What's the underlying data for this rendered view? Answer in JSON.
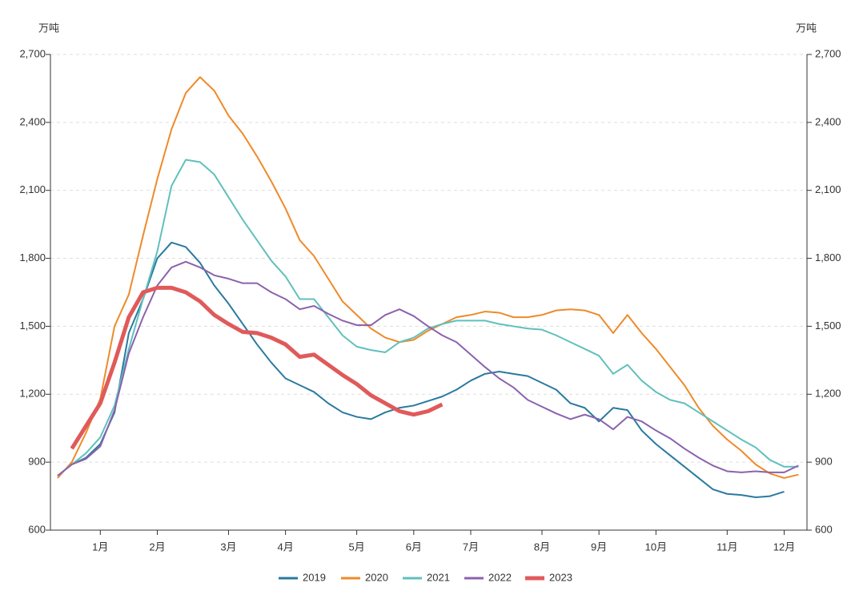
{
  "chart_data": {
    "type": "line",
    "y_unit_left": "万吨",
    "y_unit_right": "万吨",
    "x": [
      1,
      2,
      3,
      4,
      5,
      6,
      7,
      8,
      9,
      10,
      11,
      12,
      13,
      14,
      15,
      16,
      17,
      18,
      19,
      20,
      21,
      22,
      23,
      24,
      25,
      26,
      27,
      28,
      29,
      30,
      31,
      32,
      33,
      34,
      35,
      36,
      37,
      38,
      39,
      40,
      41,
      42,
      43,
      44,
      45,
      46,
      47,
      48,
      49,
      50,
      51,
      52,
      53
    ],
    "xlim": [
      0.5,
      53.6
    ],
    "xticks": [
      {
        "value": 4,
        "label": "1月"
      },
      {
        "value": 8,
        "label": "2月"
      },
      {
        "value": 13,
        "label": "3月"
      },
      {
        "value": 17,
        "label": "4月"
      },
      {
        "value": 22,
        "label": "5月"
      },
      {
        "value": 26,
        "label": "6月"
      },
      {
        "value": 30,
        "label": "7月"
      },
      {
        "value": 35,
        "label": "8月"
      },
      {
        "value": 39,
        "label": "9月"
      },
      {
        "value": 43,
        "label": "10月"
      },
      {
        "value": 48,
        "label": "11月"
      },
      {
        "value": 52,
        "label": "12月"
      }
    ],
    "ylim": [
      600,
      2700
    ],
    "yticks": [
      600,
      900,
      {
        "value": 1200,
        "label": "1,200"
      },
      {
        "value": 1500,
        "label": "1,500"
      },
      {
        "value": 1800,
        "label": "1,800"
      },
      {
        "value": 2100,
        "label": "2,100"
      },
      {
        "value": 2400,
        "label": "2,400"
      },
      {
        "value": 2700,
        "label": "2,700"
      }
    ],
    "y2lim": [
      600,
      2700
    ],
    "y2ticks": [
      600,
      900,
      {
        "value": 1200,
        "label": "1,200"
      },
      {
        "value": 1500,
        "label": "1,500"
      },
      {
        "value": 1800,
        "label": "1,800"
      },
      {
        "value": 2100,
        "label": "2,100"
      },
      {
        "value": 2400,
        "label": "2,400"
      },
      {
        "value": 2700,
        "label": "2,700"
      }
    ],
    "grid": true,
    "legend": "bottom",
    "series": [
      {
        "name": "2019",
        "color": "#2a7aa0",
        "width": 2,
        "values": [
          840,
          890,
          920,
          980,
          1120,
          1470,
          1620,
          1800,
          1870,
          1850,
          1780,
          1680,
          1600,
          1510,
          1420,
          1340,
          1270,
          1240,
          1210,
          1160,
          1120,
          1100,
          1090,
          1120,
          1140,
          1150,
          1170,
          1190,
          1220,
          1260,
          1290,
          1300,
          1290,
          1280,
          1250,
          1220,
          1160,
          1140,
          1080,
          1140,
          1130,
          1040,
          980,
          930,
          880,
          830,
          780,
          760,
          755,
          745,
          750,
          770,
          null
        ]
      },
      {
        "name": "2020",
        "color": "#ef8a2a",
        "width": 2,
        "values": [
          830,
          900,
          1030,
          1180,
          1500,
          1640,
          1900,
          2150,
          2370,
          2530,
          2600,
          2540,
          2430,
          2350,
          2250,
          2140,
          2020,
          1880,
          1810,
          1710,
          1610,
          1550,
          1490,
          1450,
          1430,
          1440,
          1480,
          1510,
          1540,
          1550,
          1565,
          1560,
          1540,
          1540,
          1550,
          1570,
          1575,
          1570,
          1550,
          1470,
          1550,
          1470,
          1400,
          1320,
          1240,
          1140,
          1060,
          1000,
          950,
          890,
          850,
          830,
          845
        ]
      },
      {
        "name": "2021",
        "color": "#60c0bd",
        "width": 2,
        "values": [
          840,
          890,
          940,
          1010,
          1150,
          1400,
          1620,
          1830,
          2120,
          2235,
          2225,
          2170,
          2070,
          1970,
          1880,
          1790,
          1720,
          1620,
          1620,
          1540,
          1460,
          1410,
          1395,
          1385,
          1430,
          1450,
          1490,
          1510,
          1525,
          1525,
          1525,
          1510,
          1500,
          1490,
          1485,
          1460,
          1430,
          1400,
          1370,
          1290,
          1330,
          1260,
          1210,
          1175,
          1160,
          1120,
          1080,
          1040,
          1000,
          965,
          910,
          880,
          880
        ]
      },
      {
        "name": "2022",
        "color": "#8b62ad",
        "width": 2,
        "values": [
          840,
          890,
          915,
          970,
          1130,
          1380,
          1540,
          1680,
          1760,
          1785,
          1760,
          1725,
          1710,
          1690,
          1690,
          1650,
          1620,
          1575,
          1590,
          1555,
          1525,
          1505,
          1505,
          1550,
          1575,
          1545,
          1500,
          1460,
          1430,
          1375,
          1320,
          1270,
          1230,
          1175,
          1145,
          1115,
          1090,
          1110,
          1090,
          1045,
          1100,
          1080,
          1040,
          1005,
          960,
          920,
          885,
          860,
          855,
          860,
          855,
          855,
          885
        ]
      },
      {
        "name": "2023",
        "color": "#e05a5a",
        "width": 5,
        "values": [
          null,
          960,
          1060,
          1160,
          1340,
          1540,
          1650,
          1670,
          1670,
          1650,
          1610,
          1550,
          1510,
          1475,
          1470,
          1450,
          1420,
          1365,
          1375,
          1330,
          1285,
          1245,
          1195,
          1160,
          1125,
          1110,
          1125,
          1155,
          null,
          null,
          null,
          null,
          null,
          null,
          null,
          null,
          null,
          null,
          null,
          null,
          null,
          null,
          null,
          null,
          null,
          null,
          null,
          null,
          null,
          null,
          null,
          null,
          null
        ]
      }
    ]
  }
}
